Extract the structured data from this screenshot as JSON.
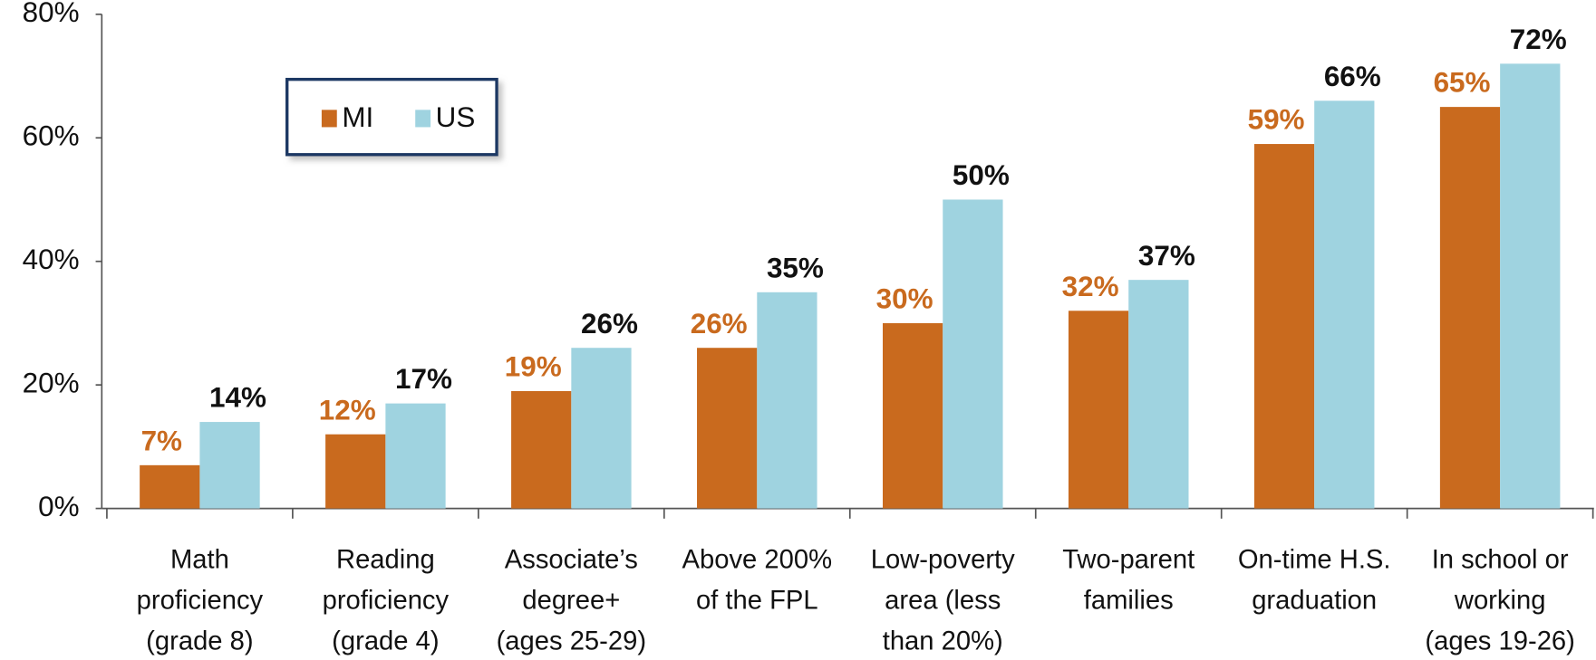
{
  "chart_data": {
    "type": "bar",
    "categories": [
      [
        "Math",
        "proficiency",
        "(grade 8)"
      ],
      [
        "Reading",
        "proficiency",
        "(grade 4)"
      ],
      [
        "Associate’s",
        "degree+",
        "(ages 25-29)"
      ],
      [
        "Above 200%",
        "of the FPL"
      ],
      [
        "Low-poverty",
        "area (less",
        "than 20%)"
      ],
      [
        "Two-parent",
        "families"
      ],
      [
        "On-time H.S.",
        "graduation"
      ],
      [
        "In school or",
        "working",
        "(ages 19-26)"
      ]
    ],
    "series": [
      {
        "name": "MI",
        "color": "#c96a1e",
        "values": [
          7,
          12,
          19,
          26,
          30,
          32,
          59,
          65
        ],
        "value_labels": [
          "7%",
          "12%",
          "19%",
          "26%",
          "30%",
          "32%",
          "59%",
          "65%"
        ]
      },
      {
        "name": "US",
        "color": "#9fd3e0",
        "values": [
          14,
          17,
          26,
          35,
          50,
          37,
          66,
          72
        ],
        "value_labels": [
          "14%",
          "17%",
          "26%",
          "35%",
          "50%",
          "37%",
          "66%",
          "72%"
        ]
      }
    ],
    "ylim": [
      0,
      80
    ],
    "yticks": [
      {
        "value": 0,
        "label": "0%"
      },
      {
        "value": 20,
        "label": "20%"
      },
      {
        "value": 40,
        "label": "40%"
      },
      {
        "value": 60,
        "label": "60%"
      },
      {
        "value": 80,
        "label": "80%"
      }
    ],
    "legend": "upper left"
  }
}
